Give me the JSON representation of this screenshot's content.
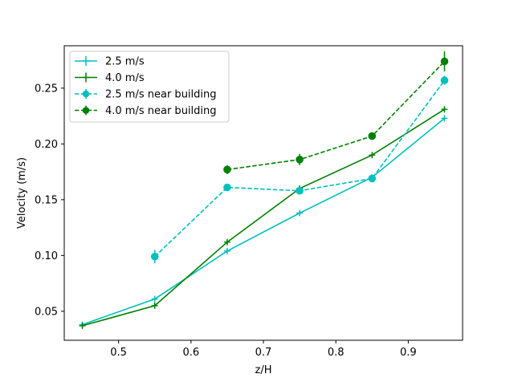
{
  "chart_data": {
    "type": "line",
    "xlabel": "z/H",
    "ylabel": "Velocity (m/s)",
    "xlim": [
      0.425,
      0.975
    ],
    "ylim": [
      0.024,
      0.288
    ],
    "xticks": [
      0.5,
      0.6,
      0.7,
      0.8,
      0.9
    ],
    "xtick_labels": [
      "0.5",
      "0.6",
      "0.7",
      "0.8",
      "0.9"
    ],
    "yticks": [
      0.05,
      0.1,
      0.15,
      0.2,
      0.25
    ],
    "ytick_labels": [
      "0.05",
      "0.10",
      "0.15",
      "0.20",
      "0.25"
    ],
    "grid": false,
    "legend_position": "top-left",
    "series": [
      {
        "name": "2.5 m/s",
        "color": "#00bfbf",
        "line_style": "solid",
        "marker": "plus",
        "x": [
          0.45,
          0.55,
          0.65,
          0.75,
          0.85,
          0.95
        ],
        "y": [
          0.038,
          0.061,
          0.104,
          0.138,
          0.17,
          0.223
        ],
        "error": [
          0.002,
          0.002,
          0.002,
          0.002,
          0.002,
          0.002
        ]
      },
      {
        "name": "4.0 m/s",
        "color": "#008000",
        "line_style": "solid",
        "marker": "plus",
        "x": [
          0.45,
          0.55,
          0.65,
          0.75,
          0.85,
          0.95
        ],
        "y": [
          0.037,
          0.055,
          0.112,
          0.16,
          0.19,
          0.231
        ],
        "error": [
          0.002,
          0.002,
          0.002,
          0.002,
          0.002,
          0.002
        ]
      },
      {
        "name": "2.5 m/s near building",
        "color": "#00bfbf",
        "line_style": "dashed",
        "marker": "circle",
        "x": [
          0.55,
          0.65,
          0.75,
          0.85,
          0.95
        ],
        "y": [
          0.099,
          0.161,
          0.158,
          0.169,
          0.257
        ],
        "error": [
          0.006,
          0.002,
          0.002,
          0.002,
          0.004
        ]
      },
      {
        "name": "4.0 m/s near building",
        "color": "#008000",
        "line_style": "dashed",
        "marker": "circle",
        "x": [
          0.65,
          0.75,
          0.85,
          0.95
        ],
        "y": [
          0.177,
          0.186,
          0.207,
          0.274
        ],
        "error": [
          0.004,
          0.005,
          0.002,
          0.009
        ]
      }
    ]
  }
}
